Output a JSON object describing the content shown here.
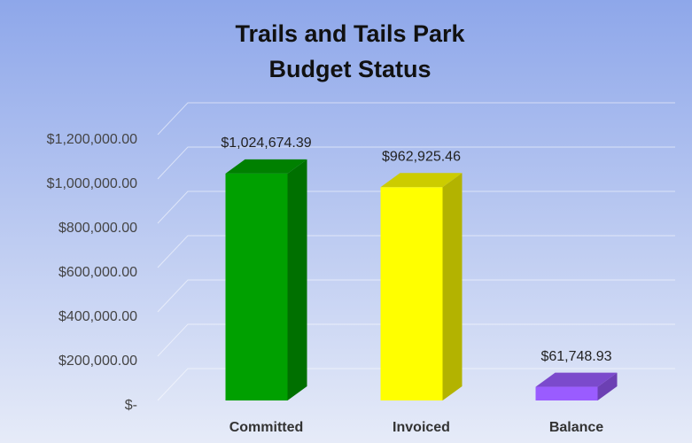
{
  "chart_data": {
    "type": "bar3d",
    "title": [
      "Trails and Tails Park",
      "Budget Status"
    ],
    "categories": [
      "Committed",
      "Invoiced",
      "Balance"
    ],
    "values": [
      1024674.39,
      962925.46,
      61748.93
    ],
    "value_labels": [
      "$1,024,674.39",
      "$962,925.46",
      "$61,748.93"
    ],
    "colors": [
      "#00a000",
      "#ffff00",
      "#9a5cff"
    ],
    "ylim": [
      0,
      1200000
    ],
    "yticks": [
      {
        "value": 0,
        "label": "$-"
      },
      {
        "value": 200000,
        "label": "$200,000.00"
      },
      {
        "value": 400000,
        "label": "$400,000.00"
      },
      {
        "value": 600000,
        "label": "$600,000.00"
      },
      {
        "value": 800000,
        "label": "$800,000.00"
      },
      {
        "value": 1000000,
        "label": "$1,000,000.00"
      },
      {
        "value": 1200000,
        "label": "$1,200,000.00"
      }
    ],
    "grid": true
  }
}
